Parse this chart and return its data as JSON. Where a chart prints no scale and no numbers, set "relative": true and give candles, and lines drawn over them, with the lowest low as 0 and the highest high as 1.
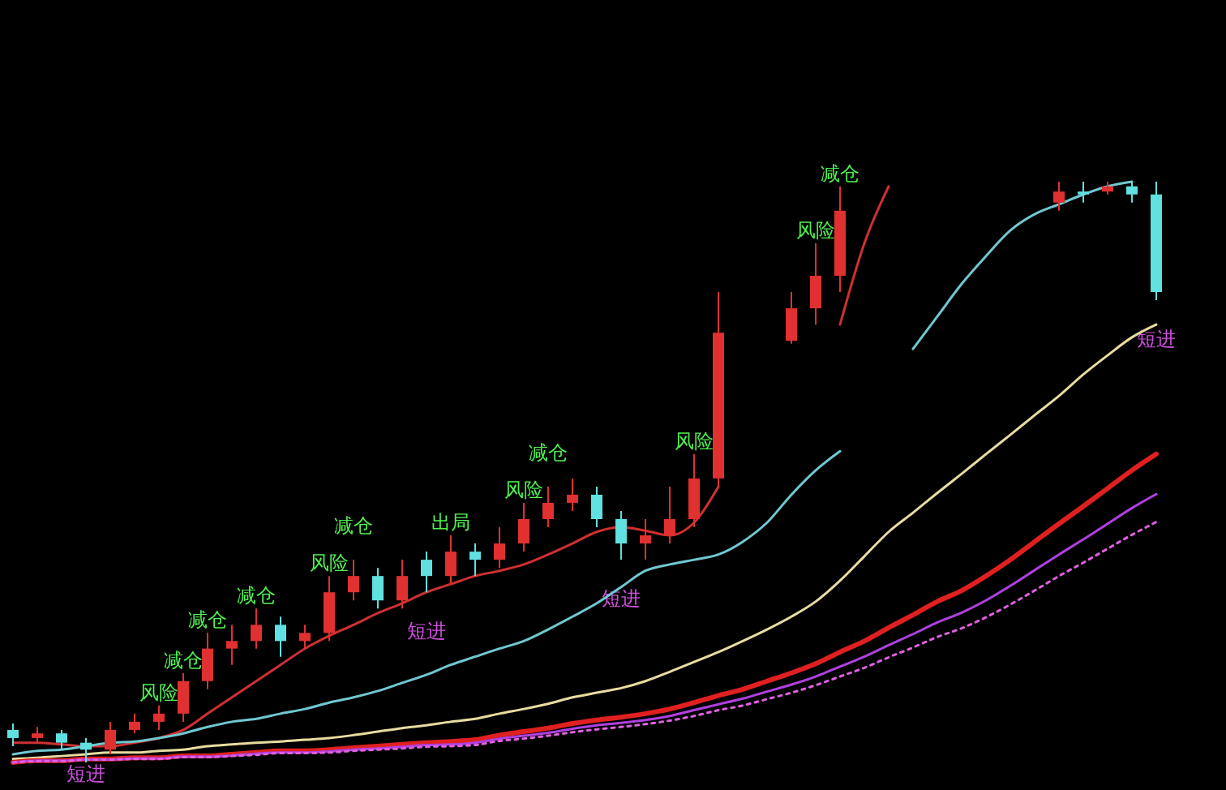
{
  "chart_data": {
    "type": "candlestick",
    "relative": true,
    "categories": [
      null,
      null,
      null,
      null,
      null,
      null,
      null,
      null,
      null,
      null,
      null,
      null,
      null,
      null,
      null,
      null,
      null,
      null,
      null,
      null,
      null,
      null,
      null,
      null,
      null,
      null,
      null,
      null,
      null,
      null,
      null,
      null,
      null,
      null,
      null,
      null,
      null,
      null,
      null,
      null,
      null,
      null,
      null,
      null,
      null,
      null,
      null,
      null
    ],
    "ohlc": [
      [
        0.056,
        0.067,
        0.028,
        0.042
      ],
      [
        0.042,
        0.061,
        0.034,
        0.05
      ],
      [
        0.05,
        0.056,
        0.022,
        0.034
      ],
      [
        0.034,
        0.042,
        0,
        0.022
      ],
      [
        0.022,
        0.07,
        0.014,
        0.056
      ],
      [
        0.056,
        0.084,
        0.05,
        0.07
      ],
      [
        0.07,
        0.098,
        0.056,
        0.084
      ],
      [
        0.084,
        0.154,
        0.07,
        0.14
      ],
      [
        0.14,
        0.223,
        0.126,
        0.196
      ],
      [
        0.196,
        0.237,
        0.168,
        0.209
      ],
      [
        0.209,
        0.265,
        0.196,
        0.237
      ],
      [
        0.237,
        0.251,
        0.182,
        0.209
      ],
      [
        0.209,
        0.237,
        0.196,
        0.223
      ],
      [
        0.223,
        0.321,
        0.209,
        0.293
      ],
      [
        0.293,
        0.349,
        0.279,
        0.321
      ],
      [
        0.321,
        0.335,
        0.265,
        0.279
      ],
      [
        0.279,
        0.349,
        0.265,
        0.321
      ],
      [
        0.349,
        0.363,
        0.293,
        0.321
      ],
      [
        0.321,
        0.391,
        0.307,
        0.363
      ],
      [
        0.363,
        0.377,
        0.321,
        0.349
      ],
      [
        0.349,
        0.405,
        0.335,
        0.377
      ],
      [
        0.377,
        0.447,
        0.363,
        0.419
      ],
      [
        0.419,
        0.475,
        0.405,
        0.447
      ],
      [
        0.447,
        0.489,
        0.433,
        0.461
      ],
      [
        0.461,
        0.475,
        0.405,
        0.419
      ],
      [
        0.419,
        0.433,
        0.349,
        0.377
      ],
      [
        0.377,
        0.419,
        0.349,
        0.391
      ],
      [
        0.391,
        0.475,
        0.377,
        0.419
      ],
      [
        0.419,
        0.531,
        0.405,
        0.489
      ],
      [
        0.489,
        0.81,
        0.475,
        0.74
      ],
      null,
      null,
      [
        0.726,
        0.81,
        0.721,
        0.782
      ],
      [
        0.782,
        0.894,
        0.754,
        0.838
      ],
      [
        0.838,
        0.992,
        0.81,
        0.95
      ],
      null,
      null,
      null,
      null,
      null,
      null,
      null,
      null,
      [
        0.964,
        1,
        0.95,
        0.983
      ],
      [
        0.983,
        1,
        0.964,
        0.978
      ],
      [
        0.983,
        1,
        0.978,
        0.992
      ],
      [
        0.992,
        1,
        0.964,
        0.978
      ],
      [
        0.978,
        1,
        0.796,
        0.81
      ]
    ],
    "value_labels": [
      null,
      null,
      null,
      "短进",
      null,
      null,
      "风险",
      "减仓",
      "减仓",
      null,
      "减仓",
      null,
      null,
      "风险",
      "减仓",
      null,
      null,
      "短进",
      "出局",
      null,
      null,
      "风险",
      "减仓",
      null,
      null,
      "短进",
      null,
      null,
      "风险",
      null,
      null,
      null,
      null,
      "风险",
      "减仓",
      null,
      null,
      null,
      null,
      null,
      null,
      null,
      null,
      null,
      null,
      null,
      null,
      "短进"
    ],
    "series": [
      {
        "type": "line",
        "color": "#d03030",
        "values": [
          0.034,
          0.034,
          0.031,
          0.028,
          0.028,
          0.034,
          0.042,
          0.056,
          0.084,
          0.112,
          0.14,
          0.168,
          0.196,
          0.218,
          0.237,
          0.257,
          0.274,
          0.293,
          0.307,
          0.321,
          0.33,
          0.341,
          0.358,
          0.377,
          0.397,
          0.405,
          0.399,
          0.391,
          0.413,
          0.475,
          null,
          null,
          null,
          null,
          0.754,
          0.894,
          0.992,
          null,
          null,
          null,
          null,
          null,
          null,
          null,
          null,
          null,
          null,
          null
        ]
      },
      {
        "type": "line",
        "color": "#70c8d0",
        "values": [
          0.014,
          0.02,
          0.022,
          0.028,
          0.034,
          0.036,
          0.042,
          0.05,
          0.061,
          0.07,
          0.075,
          0.084,
          0.092,
          0.103,
          0.112,
          0.123,
          0.137,
          0.151,
          0.168,
          0.182,
          0.196,
          0.209,
          0.229,
          0.251,
          0.274,
          0.302,
          0.33,
          0.341,
          0.349,
          0.358,
          0.38,
          0.413,
          0.461,
          0.503,
          0.536,
          null,
          null,
          0.712,
          0.768,
          0.824,
          0.872,
          0.916,
          0.944,
          0.961,
          0.978,
          0.992,
          1,
          null
        ]
      },
      {
        "type": "line",
        "color": "#e8dca0",
        "values": [
          0.006,
          0.008,
          0.011,
          0.014,
          0.017,
          0.017,
          0.02,
          0.022,
          0.028,
          0.031,
          0.034,
          0.036,
          0.039,
          0.042,
          0.047,
          0.053,
          0.059,
          0.064,
          0.07,
          0.075,
          0.084,
          0.092,
          0.101,
          0.112,
          0.12,
          0.128,
          0.14,
          0.156,
          0.173,
          0.19,
          0.209,
          0.229,
          0.251,
          0.277,
          0.313,
          0.355,
          0.397,
          0.43,
          0.464,
          0.497,
          0.531,
          0.564,
          0.598,
          0.631,
          0.668,
          0.701,
          0.732,
          0.754
        ]
      },
      {
        "type": "line",
        "color": "#e02020",
        "values": [
          0,
          0.003,
          0.003,
          0.006,
          0.006,
          0.008,
          0.008,
          0.011,
          0.011,
          0.014,
          0.017,
          0.02,
          0.02,
          0.022,
          0.025,
          0.028,
          0.031,
          0.034,
          0.036,
          0.039,
          0.047,
          0.053,
          0.059,
          0.067,
          0.073,
          0.078,
          0.084,
          0.092,
          0.103,
          0.115,
          0.126,
          0.14,
          0.154,
          0.17,
          0.19,
          0.209,
          0.232,
          0.254,
          0.277,
          0.296,
          0.321,
          0.349,
          0.38,
          0.411,
          0.441,
          0.472,
          0.503,
          0.531
        ]
      },
      {
        "type": "line",
        "color": "#b040e0",
        "values": [
          0,
          0.003,
          0.003,
          0.005,
          0.005,
          0.007,
          0.007,
          0.01,
          0.01,
          0.012,
          0.015,
          0.017,
          0.017,
          0.019,
          0.022,
          0.024,
          0.027,
          0.03,
          0.031,
          0.034,
          0.041,
          0.046,
          0.051,
          0.058,
          0.064,
          0.068,
          0.073,
          0.08,
          0.09,
          0.1,
          0.11,
          0.122,
          0.134,
          0.148,
          0.165,
          0.182,
          0.202,
          0.221,
          0.241,
          0.258,
          0.279,
          0.304,
          0.331,
          0.358,
          0.384,
          0.411,
          0.438,
          0.462
        ]
      },
      {
        "type": "line",
        "color": "#e060e0",
        "line_style": "dotted",
        "values": [
          0,
          0.002,
          0.002,
          0.005,
          0.005,
          0.006,
          0.006,
          0.009,
          0.009,
          0.011,
          0.013,
          0.016,
          0.016,
          0.017,
          0.02,
          0.022,
          0.024,
          0.027,
          0.028,
          0.03,
          0.037,
          0.041,
          0.046,
          0.052,
          0.057,
          0.061,
          0.066,
          0.072,
          0.08,
          0.09,
          0.098,
          0.109,
          0.12,
          0.133,
          0.148,
          0.163,
          0.181,
          0.198,
          0.216,
          0.231,
          0.25,
          0.272,
          0.296,
          0.321,
          0.344,
          0.368,
          0.392,
          0.414
        ]
      }
    ]
  }
}
